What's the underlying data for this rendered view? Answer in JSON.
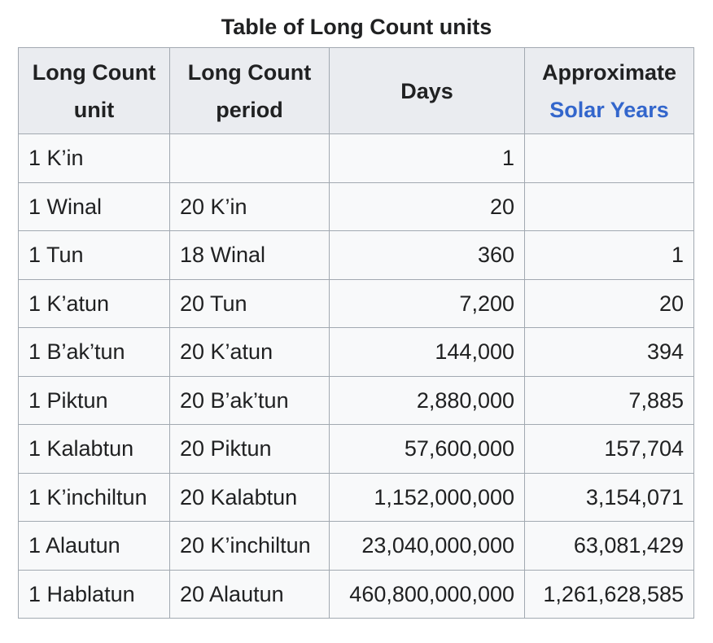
{
  "caption": "Table of Long Count units",
  "headers": {
    "col1_line1": "Long Count",
    "col1_line2": "unit",
    "col2_line1": "Long Count",
    "col2_line2": "period",
    "col3": "Days",
    "col4_line1": "Approximate",
    "col4_link": "Solar Years"
  },
  "link_color": "#3366cc",
  "rows": [
    {
      "unit": "1 K’in",
      "period": "",
      "days": "1",
      "years": ""
    },
    {
      "unit": "1 Winal",
      "period": "20 K’in",
      "days": "20",
      "years": ""
    },
    {
      "unit": "1 Tun",
      "period": "18 Winal",
      "days": "360",
      "years": "1"
    },
    {
      "unit": "1 K’atun",
      "period": "20 Tun",
      "days": "7,200",
      "years": "20"
    },
    {
      "unit": "1 B’ak’tun",
      "period": "20 K’atun",
      "days": "144,000",
      "years": "394"
    },
    {
      "unit": "1 Piktun",
      "period": "20 B’ak’tun",
      "days": "2,880,000",
      "years": "7,885"
    },
    {
      "unit": "1 Kalabtun",
      "period": "20 Piktun",
      "days": "57,600,000",
      "years": "157,704"
    },
    {
      "unit": "1 K’inchiltun",
      "period": "20 Kalabtun",
      "days": "1,152,000,000",
      "years": "3,154,071"
    },
    {
      "unit": "1 Alautun",
      "period": "20 K’inchiltun",
      "days": "23,040,000,000",
      "years": "63,081,429"
    },
    {
      "unit": "1 Hablatun",
      "period": "20 Alautun",
      "days": "460,800,000,000",
      "years": "1,261,628,585"
    }
  ]
}
